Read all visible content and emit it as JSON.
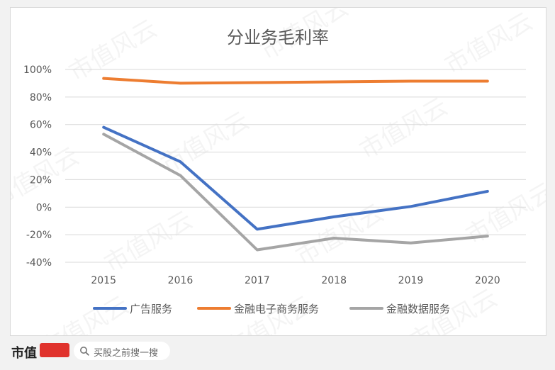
{
  "chart_data": {
    "type": "line",
    "title": "分业务毛利率",
    "categories": [
      "2015",
      "2016",
      "2017",
      "2018",
      "2019",
      "2020"
    ],
    "yticks": [
      "100%",
      "80%",
      "60%",
      "40%",
      "20%",
      "0%",
      "-20%",
      "-40%"
    ],
    "ylim": [
      -40,
      100
    ],
    "grid": true,
    "legend_position": "bottom",
    "series": [
      {
        "name": "广告服务",
        "color": "#4472c4",
        "values": [
          58,
          33,
          -16,
          -7,
          0.5,
          11.5
        ]
      },
      {
        "name": "金融电子商务服务",
        "color": "#ed7d31",
        "values": [
          93.5,
          90,
          90.5,
          91,
          91.5,
          91.5
        ]
      },
      {
        "name": "金融数据服务",
        "color": "#a5a5a5",
        "values": [
          53,
          23,
          -31,
          -22.5,
          -26,
          -21
        ]
      }
    ]
  },
  "watermark": {
    "text": "市值风云"
  },
  "footer": {
    "brand": "市值",
    "search_placeholder": "买股之前搜一搜"
  }
}
